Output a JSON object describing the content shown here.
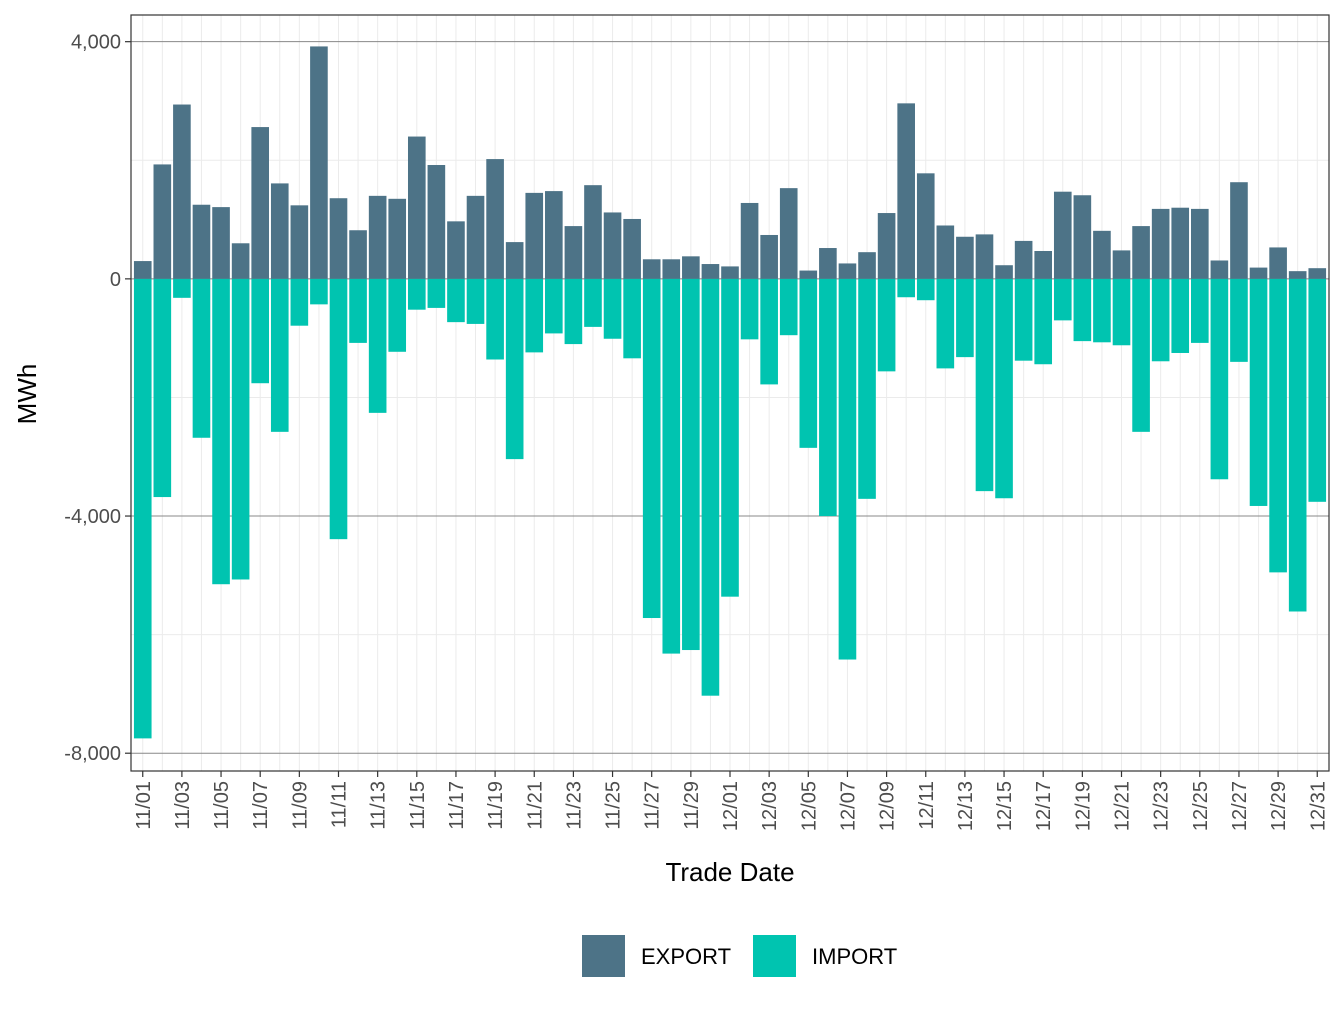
{
  "chart_data": {
    "type": "bar",
    "stacked": "diverging",
    "xlabel": "Trade Date",
    "ylabel": "MWh",
    "ylim": [
      -8300,
      4450
    ],
    "yticks": [
      4000,
      0,
      -4000,
      -8000
    ],
    "ytick_labels": [
      "4,000",
      "0",
      "-4,000",
      "-8,000"
    ],
    "legend_position": "bottom",
    "categories": [
      "11/01",
      "11/02",
      "11/03",
      "11/04",
      "11/05",
      "11/06",
      "11/07",
      "11/08",
      "11/09",
      "11/10",
      "11/11",
      "11/12",
      "11/13",
      "11/14",
      "11/15",
      "11/16",
      "11/17",
      "11/18",
      "11/19",
      "11/20",
      "11/21",
      "11/22",
      "11/23",
      "11/24",
      "11/25",
      "11/26",
      "11/27",
      "11/28",
      "11/29",
      "11/30",
      "12/01",
      "12/02",
      "12/03",
      "12/04",
      "12/05",
      "12/06",
      "12/07",
      "12/08",
      "12/09",
      "12/10",
      "12/11",
      "12/12",
      "12/13",
      "12/14",
      "12/15",
      "12/16",
      "12/17",
      "12/18",
      "12/19",
      "12/20",
      "12/21",
      "12/22",
      "12/23",
      "12/24",
      "12/25",
      "12/26",
      "12/27",
      "12/28",
      "12/29",
      "12/30",
      "12/31"
    ],
    "xtick_labels": [
      "11/01",
      "11/03",
      "11/05",
      "11/07",
      "11/09",
      "11/11",
      "11/13",
      "11/15",
      "11/17",
      "11/19",
      "11/21",
      "11/23",
      "11/25",
      "11/27",
      "11/29",
      "12/01",
      "12/03",
      "12/05",
      "12/07",
      "12/09",
      "12/11",
      "12/13",
      "12/15",
      "12/17",
      "12/19",
      "12/21",
      "12/23",
      "12/25",
      "12/27",
      "12/29",
      "12/31"
    ],
    "series": [
      {
        "name": "EXPORT",
        "color": "#4d7387",
        "values": [
          300,
          1930,
          2940,
          1250,
          1210,
          600,
          2560,
          1610,
          1240,
          3920,
          1360,
          820,
          1400,
          1350,
          2400,
          1920,
          970,
          1400,
          2020,
          620,
          1450,
          1480,
          890,
          1580,
          1120,
          1010,
          330,
          330,
          380,
          250,
          210,
          1280,
          740,
          1530,
          140,
          520,
          260,
          450,
          1110,
          2960,
          1780,
          900,
          710,
          750,
          230,
          640,
          470,
          1470,
          1410,
          810,
          480,
          890,
          1180,
          1200,
          1180,
          310,
          1630,
          190,
          530,
          130,
          180
        ]
      },
      {
        "name": "IMPORT",
        "color": "#00c4b0",
        "values": [
          -7750,
          -3680,
          -320,
          -2680,
          -5150,
          -5070,
          -1760,
          -2580,
          -790,
          -430,
          -4390,
          -1080,
          -2260,
          -1230,
          -520,
          -490,
          -730,
          -760,
          -1360,
          -3040,
          -1240,
          -920,
          -1100,
          -810,
          -1010,
          -1340,
          -5720,
          -6320,
          -6260,
          -7030,
          -5360,
          -1020,
          -1780,
          -950,
          -2850,
          -4000,
          -6420,
          -3710,
          -1560,
          -310,
          -360,
          -1510,
          -1320,
          -3580,
          -3700,
          -1380,
          -1440,
          -700,
          -1050,
          -1070,
          -1120,
          -2580,
          -1390,
          -1250,
          -1080,
          -3380,
          -1400,
          -3830,
          -4950,
          -5610,
          -3760
        ]
      }
    ]
  }
}
